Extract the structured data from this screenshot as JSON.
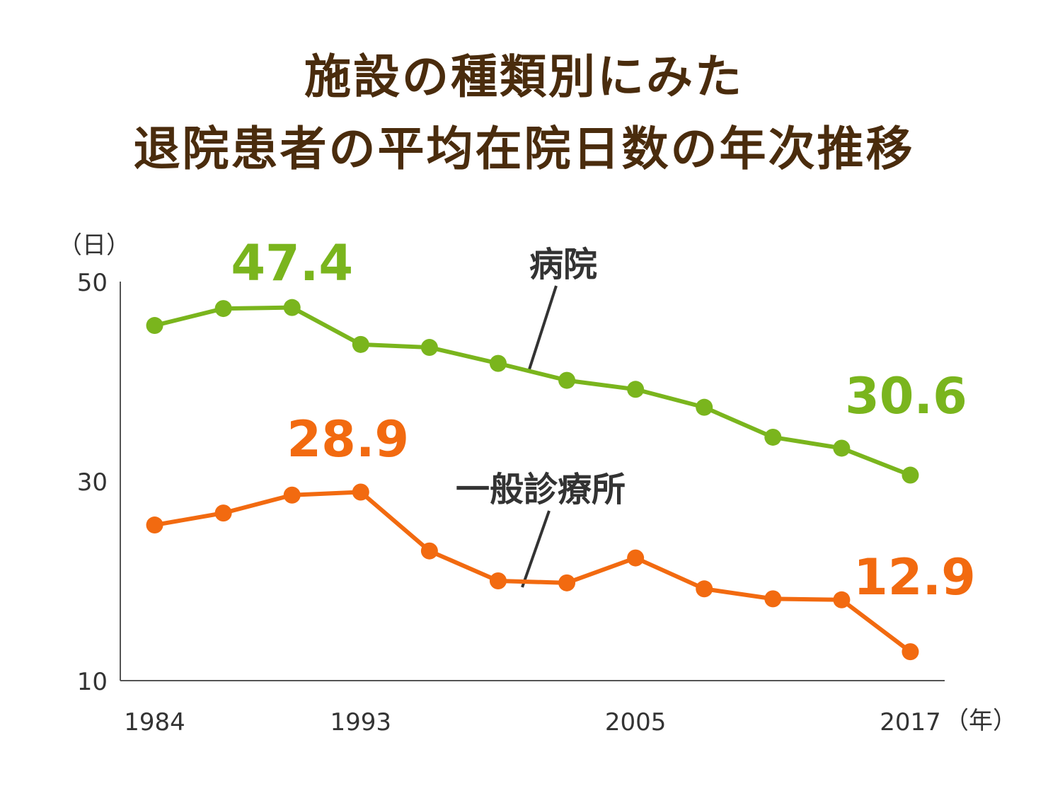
{
  "chart_data": {
    "type": "line",
    "title_lines": [
      "施設の種類別にみた",
      "退院患者の平均在院日数の年次推移"
    ],
    "y_unit": "（日）",
    "x_unit": "（年）",
    "x": [
      1984,
      1987,
      1990,
      1993,
      1996,
      1999,
      2002,
      2005,
      2008,
      2011,
      2014,
      2017
    ],
    "x_tick_labels": [
      "1984",
      "1993",
      "2005",
      "2017"
    ],
    "x_tick_values": [
      1984,
      1993,
      2005,
      2017
    ],
    "ylim": [
      10,
      50
    ],
    "y_ticks": [
      "10",
      "30",
      "50"
    ],
    "y_tick_values": [
      10,
      30,
      50
    ],
    "grid": false,
    "series": [
      {
        "name": "病院",
        "color": "#7ab51d",
        "values": [
          45.6,
          47.3,
          47.4,
          43.7,
          43.4,
          41.8,
          40.1,
          39.2,
          37.4,
          34.4,
          33.3,
          30.6
        ],
        "annotations": [
          {
            "index": 2,
            "text": "47.4"
          },
          {
            "index": 11,
            "text": "30.6"
          }
        ]
      },
      {
        "name": "一般診療所",
        "color": "#f26a10",
        "values": [
          25.6,
          26.8,
          28.6,
          28.9,
          23.0,
          20.0,
          19.8,
          22.3,
          19.2,
          18.2,
          18.1,
          12.9
        ],
        "annotations": [
          {
            "index": 3,
            "text": "28.9"
          },
          {
            "index": 11,
            "text": "12.9"
          }
        ]
      }
    ]
  }
}
